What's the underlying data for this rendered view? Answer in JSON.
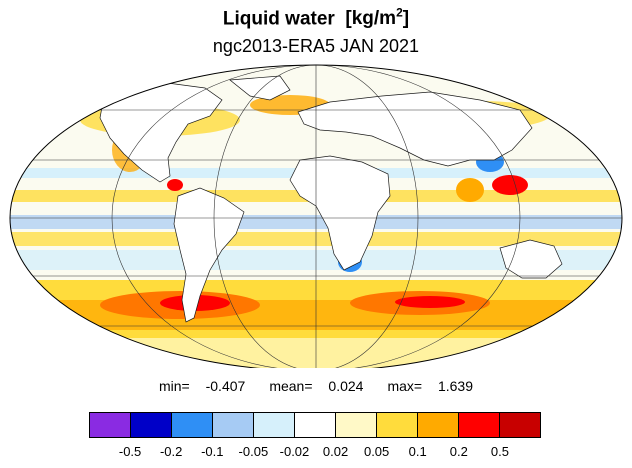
{
  "title": {
    "main": "Liquid water",
    "unit_prefix": "[kg/m",
    "unit_exp": "2",
    "unit_suffix": "]"
  },
  "subtitle": "ngc2013-ERA5 JAN 2021",
  "projection": "Mollweide",
  "stats": {
    "min_label": "min=",
    "min": "-0.407",
    "mean_label": "mean=",
    "mean": "0.024",
    "max_label": "max=",
    "max": "1.639"
  },
  "colorbar": {
    "colors": [
      "#8a2be2",
      "#0000c8",
      "#2f8ff5",
      "#a6cbf4",
      "#d6f0fb",
      "#ffffff",
      "#fff9c7",
      "#ffdc3c",
      "#ffaa00",
      "#ff0000",
      "#c80000"
    ],
    "tick_labels": [
      "-0.5",
      "-0.2",
      "-0.1",
      "-0.05",
      "-0.02",
      "0.02",
      "0.05",
      "0.1",
      "0.2",
      "0.5"
    ]
  },
  "map_grid": {
    "parallels_deg": [
      -60,
      -30,
      0,
      30,
      60
    ],
    "meridians_deg": [
      -120,
      -60,
      0,
      60,
      120
    ]
  }
}
